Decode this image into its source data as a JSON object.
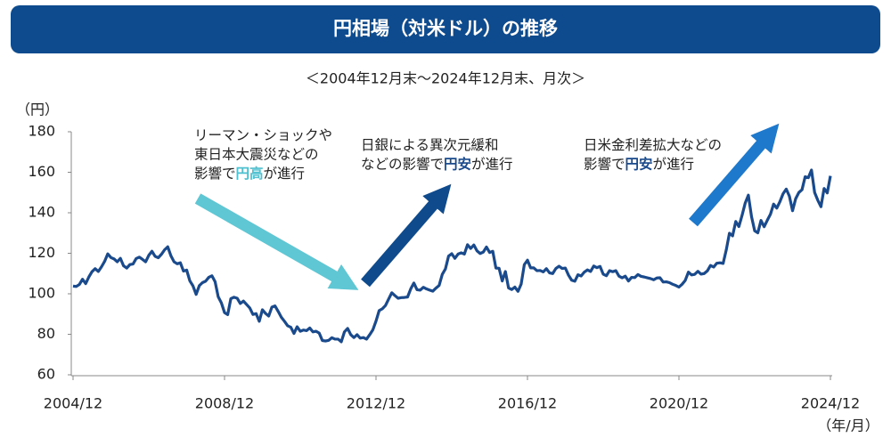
{
  "chart_data": {
    "type": "line",
    "title": "円相場（対米ドル）の推移",
    "subtitle": "＜2004年12月末～2024年12月末、月次＞",
    "y_unit": "（円）",
    "x_unit": "（年/月）",
    "annotations": [
      {
        "lines": [
          [
            "リーマン・ショックや"
          ],
          [
            "東日本大震災などの"
          ],
          [
            "影響で",
            "円高",
            "が進行"
          ]
        ]
      },
      {
        "lines": [
          [
            "日銀による異次元緩和"
          ],
          [
            "などの影響で",
            "円安",
            "が進行"
          ]
        ]
      },
      {
        "lines": [
          [
            "日米金利差拡大などの"
          ],
          [
            "影響で",
            "円安",
            "が進行"
          ]
        ]
      }
    ],
    "color": "#1a4a8c",
    "ylim": [
      60,
      180
    ],
    "yticks": [
      60,
      80,
      100,
      120,
      140,
      160,
      180
    ],
    "grid": false,
    "categories": [
      "2004/12",
      null,
      null,
      null,
      null,
      null,
      null,
      null,
      null,
      null,
      null,
      null,
      null,
      null,
      null,
      null,
      null,
      null,
      null,
      null,
      null,
      null,
      null,
      null,
      null,
      null,
      null,
      null,
      null,
      null,
      null,
      null,
      null,
      null,
      null,
      null,
      null,
      null,
      null,
      null,
      null,
      null,
      null,
      null,
      null,
      null,
      null,
      null,
      "2008/12",
      null,
      null,
      null,
      null,
      null,
      null,
      null,
      null,
      null,
      null,
      null,
      null,
      null,
      null,
      null,
      null,
      null,
      null,
      null,
      null,
      null,
      null,
      null,
      null,
      null,
      null,
      null,
      null,
      null,
      null,
      null,
      null,
      null,
      null,
      null,
      null,
      null,
      null,
      null,
      null,
      null,
      null,
      null,
      null,
      null,
      null,
      null,
      "2012/12",
      null,
      null,
      null,
      null,
      null,
      null,
      null,
      null,
      null,
      null,
      null,
      null,
      null,
      null,
      null,
      null,
      null,
      null,
      null,
      null,
      null,
      null,
      null,
      null,
      null,
      null,
      null,
      null,
      null,
      null,
      null,
      null,
      null,
      null,
      null,
      null,
      null,
      null,
      null,
      null,
      null,
      null,
      null,
      null,
      null,
      null,
      null,
      "2016/12",
      null,
      null,
      null,
      null,
      null,
      null,
      null,
      null,
      null,
      null,
      null,
      null,
      null,
      null,
      null,
      null,
      null,
      null,
      null,
      null,
      null,
      null,
      null,
      null,
      null,
      null,
      null,
      null,
      null,
      null,
      null,
      null,
      null,
      null,
      null,
      null,
      null,
      null,
      null,
      null,
      null,
      null,
      null,
      null,
      null,
      null,
      null,
      "2020/12",
      null,
      null,
      null,
      null,
      null,
      null,
      null,
      null,
      null,
      null,
      null,
      null,
      null,
      null,
      null,
      null,
      null,
      null,
      null,
      null,
      null,
      null,
      null,
      null,
      null,
      null,
      null,
      null,
      null,
      null,
      null,
      null,
      null,
      null,
      null,
      null,
      null,
      null,
      null,
      null,
      null,
      null,
      null,
      null,
      null,
      null,
      null,
      "2024/12"
    ],
    "values": [
      103.8,
      103.6,
      104.6,
      107.2,
      105.0,
      108.3,
      110.9,
      112.4,
      111.0,
      113.3,
      116.0,
      119.7,
      117.9,
      117.2,
      115.8,
      117.5,
      113.8,
      112.7,
      114.4,
      114.7,
      117.4,
      118.1,
      117.0,
      115.8,
      119.0,
      121.0,
      118.5,
      117.8,
      119.5,
      121.7,
      123.2,
      118.8,
      115.8,
      114.8,
      115.3,
      111.2,
      111.7,
      106.4,
      103.9,
      99.7,
      104.0,
      105.5,
      106.2,
      108.1,
      108.9,
      106.0,
      98.5,
      95.5,
      90.7,
      89.7,
      97.6,
      98.3,
      97.8,
      95.2,
      96.4,
      94.7,
      93.0,
      89.8,
      90.2,
      86.4,
      92.1,
      90.3,
      89.0,
      93.4,
      94.0,
      91.3,
      88.4,
      86.4,
      84.2,
      83.5,
      80.4,
      83.7,
      81.5,
      82.1,
      81.8,
      83.1,
      81.2,
      81.5,
      80.6,
      76.9,
      76.7,
      77.0,
      78.3,
      77.6,
      77.6,
      76.3,
      81.2,
      82.9,
      79.8,
      78.4,
      79.8,
      78.1,
      78.4,
      77.6,
      79.8,
      82.2,
      86.5,
      91.7,
      92.6,
      94.2,
      97.4,
      100.5,
      99.1,
      97.8,
      98.1,
      98.2,
      98.4,
      102.4,
      105.3,
      102.0,
      101.8,
      103.2,
      102.4,
      101.8,
      101.3,
      102.8,
      104.1,
      109.6,
      112.3,
      118.6,
      119.8,
      117.5,
      119.6,
      120.2,
      119.6,
      124.2,
      122.4,
      124.1,
      121.2,
      119.9,
      120.6,
      123.1,
      120.4,
      121.0,
      112.7,
      112.6,
      106.3,
      111.0,
      102.9,
      102.1,
      103.3,
      101.2,
      104.8,
      114.4,
      116.6,
      112.8,
      112.8,
      111.4,
      111.5,
      110.8,
      112.4,
      110.3,
      110.0,
      112.5,
      113.6,
      112.5,
      112.7,
      109.2,
      106.7,
      106.2,
      109.4,
      108.8,
      110.7,
      111.8,
      111.0,
      113.7,
      112.9,
      113.5,
      109.7,
      108.9,
      111.4,
      110.9,
      111.4,
      108.7,
      107.9,
      108.7,
      106.3,
      108.1,
      108.0,
      109.5,
      108.6,
      108.3,
      107.9,
      107.5,
      106.9,
      107.8,
      107.9,
      105.8,
      105.9,
      105.5,
      104.7,
      104.1,
      103.3,
      104.7,
      106.6,
      110.7,
      109.3,
      109.6,
      111.1,
      109.7,
      110.0,
      111.3,
      114.0,
      113.2,
      115.1,
      115.3,
      115.0,
      121.7,
      129.9,
      128.6,
      135.7,
      133.2,
      138.7,
      144.8,
      148.7,
      138.1,
      131.1,
      130.1,
      136.2,
      133.1,
      136.3,
      139.3,
      144.3,
      142.3,
      145.5,
      149.4,
      151.7,
      148.2,
      141.0,
      147.0,
      150.0,
      151.4,
      157.8,
      157.3,
      161.1,
      150.0,
      146.2,
      143.0,
      152.0,
      149.8,
      158.2
    ]
  }
}
